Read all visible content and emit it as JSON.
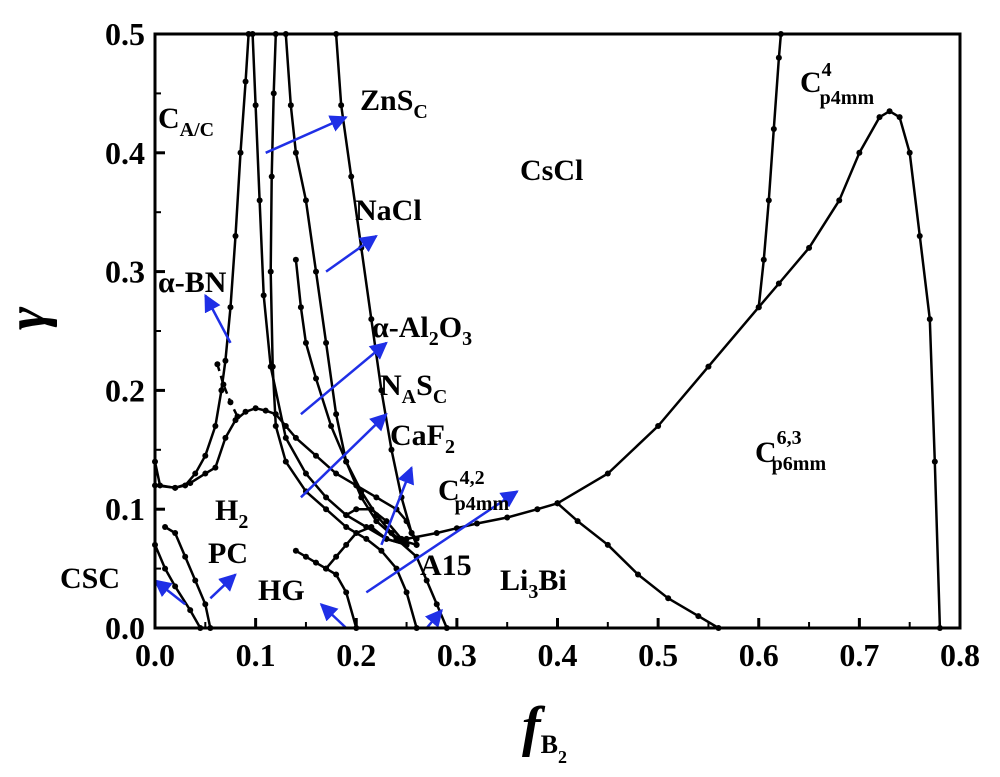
{
  "chart_data": {
    "type": "line",
    "title": "",
    "xlabel": "f",
    "xlabel_sub": "B",
    "xlabel_subsub": "2",
    "ylabel": "γ",
    "xlim": [
      0.0,
      0.8
    ],
    "ylim": [
      0.0,
      0.5
    ],
    "x_ticks": [
      "0.0",
      "0.1",
      "0.2",
      "0.3",
      "0.4",
      "0.5",
      "0.6",
      "0.7",
      "0.8"
    ],
    "y_ticks": [
      "0.0",
      "0.1",
      "0.2",
      "0.3",
      "0.4",
      "0.5"
    ],
    "grid": false,
    "line_color": "#000000",
    "arrow_color": "#1f2fe6",
    "series": [
      {
        "style": "solid",
        "points": [
          [
            0.0,
            0.14
          ],
          [
            0.005,
            0.12
          ],
          [
            0.02,
            0.118
          ],
          [
            0.03,
            0.12
          ],
          [
            0.04,
            0.13
          ],
          [
            0.05,
            0.145
          ],
          [
            0.06,
            0.17
          ],
          [
            0.066,
            0.2
          ],
          [
            0.07,
            0.225
          ],
          [
            0.075,
            0.27
          ],
          [
            0.08,
            0.33
          ],
          [
            0.085,
            0.4
          ],
          [
            0.09,
            0.46
          ],
          [
            0.093,
            0.5
          ]
        ]
      },
      {
        "style": "dashed",
        "points": [
          [
            0.062,
            0.222
          ],
          [
            0.068,
            0.205
          ],
          [
            0.075,
            0.19
          ],
          [
            0.082,
            0.178
          ]
        ]
      },
      {
        "style": "solid",
        "points": [
          [
            0.0,
            0.12
          ],
          [
            0.02,
            0.118
          ],
          [
            0.035,
            0.122
          ],
          [
            0.05,
            0.13
          ],
          [
            0.06,
            0.135
          ],
          [
            0.07,
            0.16
          ],
          [
            0.08,
            0.175
          ],
          [
            0.09,
            0.182
          ],
          [
            0.1,
            0.185
          ],
          [
            0.11,
            0.183
          ],
          [
            0.12,
            0.18
          ],
          [
            0.13,
            0.17
          ],
          [
            0.14,
            0.16
          ],
          [
            0.16,
            0.145
          ],
          [
            0.18,
            0.13
          ],
          [
            0.2,
            0.12
          ],
          [
            0.22,
            0.11
          ],
          [
            0.24,
            0.1
          ],
          [
            0.25,
            0.09
          ],
          [
            0.255,
            0.08
          ],
          [
            0.26,
            0.075
          ]
        ]
      },
      {
        "style": "solid",
        "points": [
          [
            0.12,
            0.5
          ],
          [
            0.118,
            0.45
          ],
          [
            0.116,
            0.38
          ],
          [
            0.115,
            0.3
          ],
          [
            0.117,
            0.22
          ],
          [
            0.12,
            0.17
          ],
          [
            0.13,
            0.14
          ],
          [
            0.15,
            0.115
          ],
          [
            0.17,
            0.1
          ],
          [
            0.19,
            0.085
          ],
          [
            0.21,
            0.075
          ],
          [
            0.225,
            0.065
          ],
          [
            0.24,
            0.05
          ],
          [
            0.25,
            0.03
          ],
          [
            0.26,
            0.0
          ]
        ]
      },
      {
        "style": "solid",
        "points": [
          [
            0.097,
            0.5
          ],
          [
            0.1,
            0.44
          ],
          [
            0.104,
            0.36
          ],
          [
            0.108,
            0.28
          ],
          [
            0.115,
            0.22
          ],
          [
            0.13,
            0.16
          ],
          [
            0.15,
            0.13
          ],
          [
            0.17,
            0.11
          ],
          [
            0.19,
            0.095
          ],
          [
            0.21,
            0.085
          ],
          [
            0.23,
            0.075
          ],
          [
            0.25,
            0.07
          ]
        ]
      },
      {
        "style": "solid",
        "points": [
          [
            0.13,
            0.5
          ],
          [
            0.135,
            0.44
          ],
          [
            0.14,
            0.4
          ],
          [
            0.15,
            0.36
          ],
          [
            0.16,
            0.3
          ],
          [
            0.17,
            0.24
          ],
          [
            0.18,
            0.18
          ],
          [
            0.19,
            0.14
          ],
          [
            0.205,
            0.11
          ],
          [
            0.22,
            0.09
          ],
          [
            0.24,
            0.075
          ],
          [
            0.26,
            0.07
          ]
        ]
      },
      {
        "style": "solid",
        "points": [
          [
            0.18,
            0.5
          ],
          [
            0.185,
            0.44
          ],
          [
            0.195,
            0.38
          ],
          [
            0.205,
            0.32
          ],
          [
            0.215,
            0.26
          ],
          [
            0.225,
            0.2
          ],
          [
            0.235,
            0.15
          ],
          [
            0.245,
            0.11
          ],
          [
            0.255,
            0.08
          ],
          [
            0.26,
            0.07
          ]
        ]
      },
      {
        "style": "solid",
        "points": [
          [
            0.14,
            0.31
          ],
          [
            0.145,
            0.27
          ],
          [
            0.15,
            0.24
          ],
          [
            0.16,
            0.21
          ],
          [
            0.175,
            0.17
          ],
          [
            0.19,
            0.14
          ],
          [
            0.205,
            0.115
          ],
          [
            0.22,
            0.095
          ],
          [
            0.235,
            0.08
          ],
          [
            0.25,
            0.07
          ]
        ]
      },
      {
        "style": "solid",
        "points": [
          [
            0.01,
            0.085
          ],
          [
            0.02,
            0.08
          ],
          [
            0.03,
            0.06
          ],
          [
            0.04,
            0.04
          ],
          [
            0.05,
            0.02
          ],
          [
            0.055,
            0.0
          ]
        ]
      },
      {
        "style": "solid",
        "points": [
          [
            0.0,
            0.07
          ],
          [
            0.01,
            0.05
          ],
          [
            0.02,
            0.035
          ],
          [
            0.035,
            0.015
          ],
          [
            0.045,
            0.0
          ]
        ]
      },
      {
        "style": "solid",
        "points": [
          [
            0.14,
            0.065
          ],
          [
            0.15,
            0.06
          ],
          [
            0.16,
            0.055
          ],
          [
            0.17,
            0.05
          ],
          [
            0.18,
            0.045
          ],
          [
            0.19,
            0.03
          ],
          [
            0.2,
            0.0
          ]
        ]
      },
      {
        "style": "solid",
        "points": [
          [
            0.17,
            0.05
          ],
          [
            0.18,
            0.06
          ],
          [
            0.19,
            0.07
          ],
          [
            0.2,
            0.08
          ],
          [
            0.215,
            0.085
          ],
          [
            0.23,
            0.075
          ],
          [
            0.25,
            0.07
          ]
        ]
      },
      {
        "style": "solid",
        "points": [
          [
            0.19,
            0.095
          ],
          [
            0.2,
            0.1
          ],
          [
            0.215,
            0.1
          ],
          [
            0.23,
            0.09
          ],
          [
            0.245,
            0.075
          ]
        ]
      },
      {
        "style": "solid",
        "points": [
          [
            0.24,
            0.075
          ],
          [
            0.26,
            0.06
          ],
          [
            0.27,
            0.04
          ],
          [
            0.28,
            0.02
          ],
          [
            0.29,
            0.0
          ]
        ]
      },
      {
        "style": "solid",
        "points": [
          [
            0.25,
            0.075
          ],
          [
            0.28,
            0.08
          ],
          [
            0.3,
            0.084
          ],
          [
            0.32,
            0.088
          ],
          [
            0.35,
            0.093
          ],
          [
            0.38,
            0.1
          ],
          [
            0.4,
            0.105
          ]
        ]
      },
      {
        "style": "solid",
        "points": [
          [
            0.4,
            0.105
          ],
          [
            0.45,
            0.13
          ],
          [
            0.5,
            0.17
          ],
          [
            0.55,
            0.22
          ],
          [
            0.6,
            0.27
          ],
          [
            0.62,
            0.29
          ],
          [
            0.65,
            0.32
          ],
          [
            0.68,
            0.36
          ],
          [
            0.7,
            0.4
          ],
          [
            0.72,
            0.43
          ],
          [
            0.73,
            0.435
          ],
          [
            0.74,
            0.43
          ],
          [
            0.75,
            0.4
          ],
          [
            0.76,
            0.33
          ],
          [
            0.77,
            0.26
          ],
          [
            0.775,
            0.14
          ],
          [
            0.78,
            0.0
          ]
        ]
      },
      {
        "style": "solid",
        "points": [
          [
            0.4,
            0.105
          ],
          [
            0.42,
            0.09
          ],
          [
            0.45,
            0.07
          ],
          [
            0.48,
            0.045
          ],
          [
            0.51,
            0.025
          ],
          [
            0.54,
            0.01
          ],
          [
            0.56,
            0.0
          ]
        ]
      },
      {
        "style": "solid",
        "points": [
          [
            0.6,
            0.27
          ],
          [
            0.605,
            0.31
          ],
          [
            0.61,
            0.36
          ],
          [
            0.615,
            0.42
          ],
          [
            0.62,
            0.48
          ],
          [
            0.622,
            0.5
          ]
        ]
      }
    ],
    "arrows": [
      [
        0.11,
        0.4,
        0.19,
        0.43
      ],
      [
        0.17,
        0.3,
        0.22,
        0.33
      ],
      [
        0.075,
        0.24,
        0.05,
        0.28
      ],
      [
        0.145,
        0.18,
        0.23,
        0.24
      ],
      [
        0.145,
        0.11,
        0.23,
        0.18
      ],
      [
        0.225,
        0.07,
        0.255,
        0.135
      ],
      [
        0.21,
        0.03,
        0.36,
        0.115
      ],
      [
        0.03,
        0.02,
        0.0,
        0.04
      ],
      [
        0.055,
        0.025,
        0.08,
        0.045
      ],
      [
        0.19,
        0.0,
        0.165,
        0.02
      ],
      [
        0.27,
        0.0,
        0.285,
        0.015
      ]
    ],
    "region_labels": {
      "ca_c": "C",
      "ca_c_sub": "A/C",
      "zns": "ZnS",
      "zns_sub": "C",
      "cscl": "CsCl",
      "c4_main": "C",
      "c4_sup": "4",
      "c4_sub": "p4mm",
      "nacl": "NaCl",
      "abn": "α-BN",
      "al2o3": "α-Al",
      "al2o3_a": "2",
      "al2o3_b": "O",
      "al2o3_c": "3",
      "nasc": "N",
      "nasc_a": "A",
      "nasc_b": "S",
      "nasc_c": "C",
      "caf2": "CaF",
      "caf2_sub": "2",
      "c42_main": "C",
      "c42_sup": "4,2",
      "c42_sub": "p4mm",
      "c63_main": "C",
      "c63_sup": "6,3",
      "c63_sub": "p6mm",
      "h2": "H",
      "h2_sub": "2",
      "pc": "PC",
      "csc": "CSC",
      "hg": "HG",
      "a15": "A15",
      "li3bi_a": "Li",
      "li3bi_sub": "3",
      "li3bi_b": "Bi"
    }
  }
}
